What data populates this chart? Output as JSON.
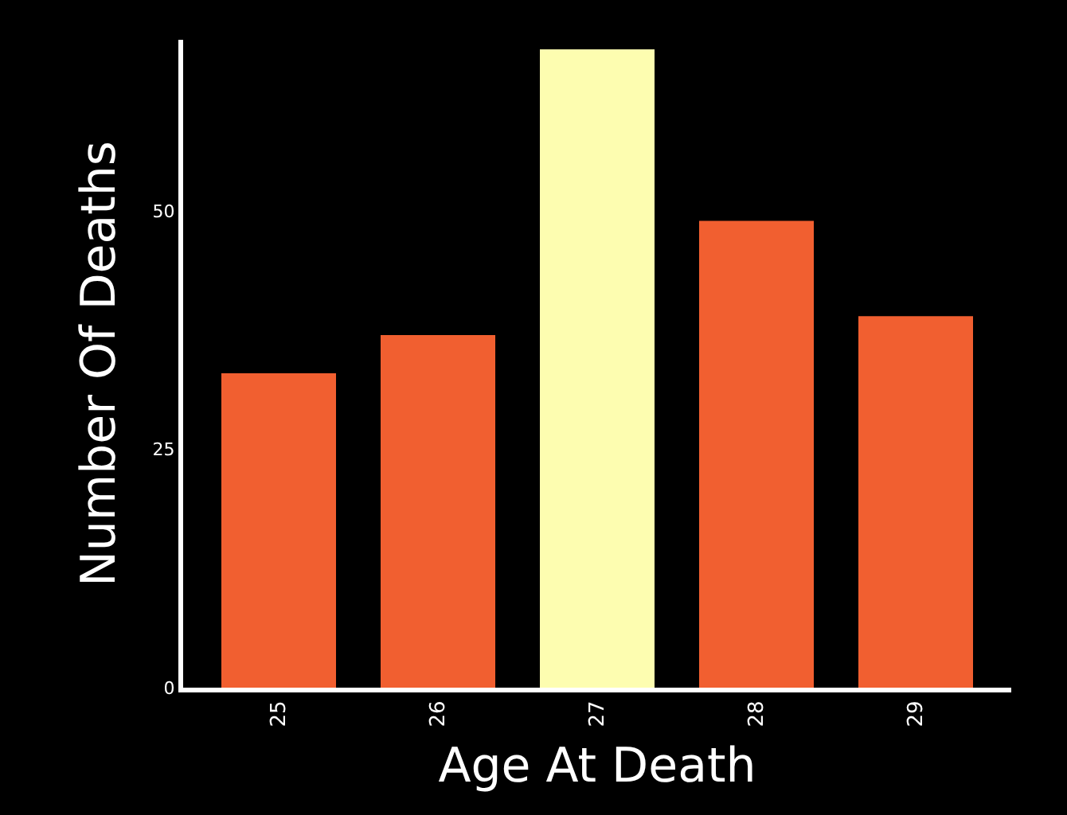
{
  "chart_data": {
    "type": "bar",
    "xlabel": "Age At Death",
    "ylabel": "Number Of Deaths",
    "categories": [
      "25",
      "26",
      "27",
      "28",
      "29"
    ],
    "values": [
      33,
      37,
      67,
      49,
      39
    ],
    "colors": [
      "#f15f30",
      "#f15f30",
      "#fdfdb0",
      "#f15f30",
      "#f15f30"
    ],
    "ylim": [
      0,
      68
    ],
    "yticks": [
      0,
      25,
      50
    ],
    "grid": false
  }
}
